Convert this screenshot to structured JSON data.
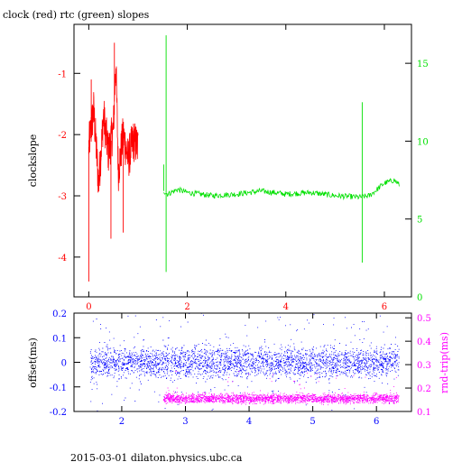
{
  "title": "clock (red) rtc (green) slopes",
  "footer": "2015-03-01 dilaton.physics.ubc.ca",
  "colors": {
    "red": "#ff0000",
    "green": "#00e000",
    "blue": "#0000ff",
    "magenta": "#ff00ff",
    "frame": "#000000"
  },
  "chart_data": [
    {
      "type": "line",
      "ylabel": "clockslope",
      "x_ticks": [
        "0",
        "2",
        "4",
        "6"
      ],
      "x_tick_values": [
        0,
        2,
        4,
        6
      ],
      "xlim": [
        -0.3,
        6.55
      ],
      "left_axis": {
        "ylim": [
          -4.65,
          -0.2
        ],
        "ticks": [
          "-4",
          "-3",
          "-2",
          "-1"
        ],
        "tick_values": [
          -4,
          -3,
          -2,
          -1
        ],
        "color": "#ff0000"
      },
      "right_axis": {
        "ylim": [
          0,
          17.5
        ],
        "ticks": [
          "0",
          "5",
          "10",
          "15"
        ],
        "tick_values": [
          0,
          5,
          10,
          15
        ],
        "color": "#00e000"
      },
      "series": [
        {
          "color": "#ff0000",
          "axis": "left",
          "x_range": [
            0,
            1
          ],
          "points": [
            [
              0.0,
              -2.2
            ],
            [
              0.1,
              -1.6
            ],
            [
              0.2,
              -2.8
            ],
            [
              0.3,
              -1.7
            ],
            [
              0.4,
              -2.3
            ],
            [
              0.5,
              -1.9
            ],
            [
              0.55,
              -0.8
            ],
            [
              0.6,
              -2.6
            ],
            [
              0.7,
              -2.0
            ],
            [
              0.8,
              -2.4
            ],
            [
              0.9,
              -2.1
            ],
            [
              1.0,
              -2.2
            ]
          ],
          "spikes": [
            [
              0.0,
              -4.4
            ],
            [
              0.05,
              -1.1
            ],
            [
              0.52,
              -0.5
            ],
            [
              0.45,
              -3.7
            ],
            [
              0.7,
              -3.6
            ]
          ]
        },
        {
          "color": "#00e000",
          "axis": "right",
          "x_range": [
            1.52,
            6.3
          ],
          "points": [
            [
              1.52,
              6.8
            ],
            [
              1.6,
              6.6
            ],
            [
              1.8,
              6.9
            ],
            [
              2.0,
              6.7
            ],
            [
              2.5,
              6.5
            ],
            [
              3.0,
              6.6
            ],
            [
              3.5,
              6.8
            ],
            [
              4.0,
              6.6
            ],
            [
              4.5,
              6.7
            ],
            [
              5.0,
              6.5
            ],
            [
              5.5,
              6.4
            ],
            [
              5.7,
              6.5
            ],
            [
              6.0,
              7.3
            ],
            [
              6.2,
              7.5
            ],
            [
              6.3,
              7.2
            ]
          ],
          "spikes": [
            [
              1.57,
              16.8
            ],
            [
              1.57,
              1.6
            ],
            [
              5.55,
              12.5
            ],
            [
              5.55,
              2.2
            ],
            [
              1.52,
              8.5
            ]
          ]
        }
      ]
    },
    {
      "type": "scatter",
      "ylabel_left": "offset(ms)",
      "ylabel_right": "rnd-trip(ms)",
      "x_ticks": [
        "2",
        "3",
        "4",
        "5",
        "6"
      ],
      "x_tick_values": [
        2,
        3,
        4,
        5,
        6
      ],
      "xlim": [
        1.25,
        6.55
      ],
      "left_axis": {
        "ylim": [
          -0.2,
          0.2
        ],
        "ticks": [
          "-0.2",
          "-0.1",
          "0",
          "0.1",
          "0.2"
        ],
        "tick_values": [
          -0.2,
          -0.1,
          0,
          0.1,
          0.2
        ],
        "color": "#0000ff"
      },
      "right_axis": {
        "ylim": [
          0.1,
          0.52
        ],
        "ticks": [
          "0.1",
          "0.2",
          "0.3",
          "0.4",
          "0.5"
        ],
        "tick_values": [
          0.1,
          0.2,
          0.3,
          0.4,
          0.5
        ],
        "color": "#ff00ff"
      },
      "series": [
        {
          "color": "#0000ff",
          "axis": "left",
          "x_range": [
            1.5,
            6.35
          ],
          "center": 0.0,
          "spread": 0.03
        },
        {
          "color": "#ff00ff",
          "axis": "right",
          "x_range": [
            2.65,
            6.35
          ],
          "center": 0.155,
          "spread": 0.01
        }
      ]
    }
  ]
}
